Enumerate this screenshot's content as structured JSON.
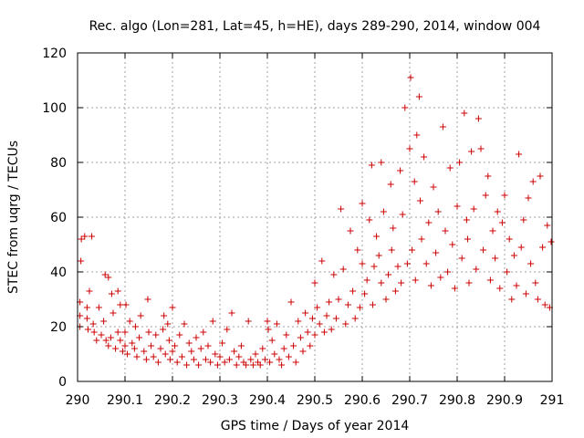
{
  "chart_data": {
    "type": "scatter",
    "title": "Rec. algo (Lon=281, Lat=45, h=HE), days 289-290, 2014, window 004",
    "xlabel": "GPS time / Days of year 2014",
    "ylabel": "STEC from uqrg / TECUs",
    "xlim": [
      290,
      291
    ],
    "ylim": [
      0,
      120
    ],
    "x_ticks": [
      290,
      290.1,
      290.2,
      290.3,
      290.4,
      290.5,
      290.6,
      290.7,
      290.8,
      290.9,
      291
    ],
    "x_tick_labels": [
      "290",
      "290.1",
      "290.2",
      "290.3",
      "290.4",
      "290.5",
      "290.6",
      "290.7",
      "290.8",
      "290.9",
      "291"
    ],
    "y_ticks": [
      0,
      20,
      40,
      60,
      80,
      100,
      120
    ],
    "y_tick_labels": [
      "0",
      "20",
      "40",
      "60",
      "80",
      "100",
      "120"
    ],
    "grid": true,
    "marker": "plus",
    "color": "#cc0000",
    "series": [
      {
        "points": [
          [
            290.005,
            20
          ],
          [
            290.005,
            24
          ],
          [
            290.005,
            29
          ],
          [
            290.007,
            44
          ],
          [
            290.008,
            52
          ],
          [
            290.015,
            53
          ],
          [
            290.02,
            27
          ],
          [
            290.02,
            23
          ],
          [
            290.022,
            19
          ],
          [
            290.025,
            33
          ],
          [
            290.03,
            53
          ],
          [
            290.033,
            21
          ],
          [
            290.035,
            18
          ],
          [
            290.04,
            15
          ],
          [
            290.045,
            27
          ],
          [
            290.05,
            17
          ],
          [
            290.055,
            22
          ],
          [
            290.058,
            39
          ],
          [
            290.06,
            15
          ],
          [
            290.065,
            38
          ],
          [
            290.065,
            13
          ],
          [
            290.07,
            16
          ],
          [
            290.072,
            32
          ],
          [
            290.075,
            25
          ],
          [
            290.08,
            12
          ],
          [
            290.085,
            18
          ],
          [
            290.085,
            33
          ],
          [
            290.09,
            15
          ],
          [
            290.09,
            28
          ],
          [
            290.095,
            11
          ],
          [
            290.1,
            13
          ],
          [
            290.1,
            18
          ],
          [
            290.102,
            28
          ],
          [
            290.105,
            10
          ],
          [
            290.11,
            22
          ],
          [
            290.115,
            14
          ],
          [
            290.12,
            12
          ],
          [
            290.122,
            20
          ],
          [
            290.125,
            9
          ],
          [
            290.13,
            16
          ],
          [
            290.133,
            24
          ],
          [
            290.14,
            11
          ],
          [
            290.145,
            8
          ],
          [
            290.148,
            30
          ],
          [
            290.15,
            18
          ],
          [
            290.155,
            13
          ],
          [
            290.16,
            9
          ],
          [
            290.165,
            17
          ],
          [
            290.17,
            7
          ],
          [
            290.175,
            12
          ],
          [
            290.18,
            19
          ],
          [
            290.182,
            24
          ],
          [
            290.185,
            10
          ],
          [
            290.19,
            21
          ],
          [
            290.193,
            15
          ],
          [
            290.195,
            8
          ],
          [
            290.2,
            27
          ],
          [
            290.2,
            11
          ],
          [
            290.205,
            13
          ],
          [
            290.21,
            7
          ],
          [
            290.215,
            17
          ],
          [
            290.22,
            9
          ],
          [
            290.225,
            21
          ],
          [
            290.23,
            6
          ],
          [
            290.235,
            14
          ],
          [
            290.24,
            11
          ],
          [
            290.245,
            8
          ],
          [
            290.25,
            16
          ],
          [
            290.255,
            6
          ],
          [
            290.26,
            12
          ],
          [
            290.265,
            18
          ],
          [
            290.27,
            8
          ],
          [
            290.275,
            13
          ],
          [
            290.28,
            7
          ],
          [
            290.285,
            22
          ],
          [
            290.29,
            10
          ],
          [
            290.295,
            6
          ],
          [
            290.3,
            9
          ],
          [
            290.305,
            14
          ],
          [
            290.31,
            7
          ],
          [
            290.315,
            19
          ],
          [
            290.32,
            8
          ],
          [
            290.325,
            25
          ],
          [
            290.33,
            11
          ],
          [
            290.335,
            6
          ],
          [
            290.34,
            9
          ],
          [
            290.345,
            13
          ],
          [
            290.35,
            7
          ],
          [
            290.355,
            6
          ],
          [
            290.36,
            22
          ],
          [
            290.365,
            8
          ],
          [
            290.37,
            6
          ],
          [
            290.375,
            10
          ],
          [
            290.38,
            7
          ],
          [
            290.385,
            6
          ],
          [
            290.39,
            12
          ],
          [
            290.395,
            8
          ],
          [
            290.4,
            22
          ],
          [
            290.402,
            19
          ],
          [
            290.405,
            7
          ],
          [
            290.41,
            15
          ],
          [
            290.415,
            10
          ],
          [
            290.42,
            21
          ],
          [
            290.425,
            8
          ],
          [
            290.43,
            6
          ],
          [
            290.435,
            12
          ],
          [
            290.44,
            17
          ],
          [
            290.445,
            9
          ],
          [
            290.45,
            29
          ],
          [
            290.455,
            13
          ],
          [
            290.46,
            7
          ],
          [
            290.465,
            22
          ],
          [
            290.47,
            16
          ],
          [
            290.475,
            11
          ],
          [
            290.48,
            25
          ],
          [
            290.485,
            18
          ],
          [
            290.49,
            13
          ],
          [
            290.495,
            23
          ],
          [
            290.5,
            36
          ],
          [
            290.5,
            17
          ],
          [
            290.505,
            27
          ],
          [
            290.51,
            21
          ],
          [
            290.515,
            44
          ],
          [
            290.52,
            18
          ],
          [
            290.525,
            24
          ],
          [
            290.53,
            29
          ],
          [
            290.535,
            19
          ],
          [
            290.54,
            39
          ],
          [
            290.545,
            23
          ],
          [
            290.55,
            30
          ],
          [
            290.555,
            63
          ],
          [
            290.56,
            41
          ],
          [
            290.565,
            21
          ],
          [
            290.57,
            28
          ],
          [
            290.575,
            55
          ],
          [
            290.58,
            33
          ],
          [
            290.585,
            23
          ],
          [
            290.59,
            48
          ],
          [
            290.595,
            27
          ],
          [
            290.6,
            65
          ],
          [
            290.6,
            43
          ],
          [
            290.605,
            32
          ],
          [
            290.61,
            37
          ],
          [
            290.615,
            59
          ],
          [
            290.62,
            79
          ],
          [
            290.622,
            28
          ],
          [
            290.625,
            42
          ],
          [
            290.63,
            53
          ],
          [
            290.635,
            46
          ],
          [
            290.64,
            36
          ],
          [
            290.64,
            80
          ],
          [
            290.645,
            62
          ],
          [
            290.65,
            30
          ],
          [
            290.655,
            39
          ],
          [
            290.66,
            72
          ],
          [
            290.662,
            48
          ],
          [
            290.665,
            56
          ],
          [
            290.67,
            33
          ],
          [
            290.675,
            42
          ],
          [
            290.68,
            77
          ],
          [
            290.682,
            36
          ],
          [
            290.685,
            61
          ],
          [
            290.69,
            100
          ],
          [
            290.695,
            43
          ],
          [
            290.7,
            85
          ],
          [
            290.702,
            111
          ],
          [
            290.705,
            48
          ],
          [
            290.71,
            73
          ],
          [
            290.712,
            37
          ],
          [
            290.715,
            90
          ],
          [
            290.72,
            104
          ],
          [
            290.722,
            66
          ],
          [
            290.725,
            52
          ],
          [
            290.73,
            82
          ],
          [
            290.735,
            43
          ],
          [
            290.74,
            58
          ],
          [
            290.745,
            35
          ],
          [
            290.75,
            71
          ],
          [
            290.755,
            47
          ],
          [
            290.76,
            62
          ],
          [
            290.765,
            38
          ],
          [
            290.77,
            93
          ],
          [
            290.775,
            55
          ],
          [
            290.78,
            40
          ],
          [
            290.785,
            78
          ],
          [
            290.79,
            50
          ],
          [
            290.795,
            34
          ],
          [
            290.8,
            64
          ],
          [
            290.805,
            80
          ],
          [
            290.81,
            45
          ],
          [
            290.815,
            98
          ],
          [
            290.82,
            59
          ],
          [
            290.822,
            52
          ],
          [
            290.825,
            36
          ],
          [
            290.83,
            84
          ],
          [
            290.835,
            63
          ],
          [
            290.84,
            41
          ],
          [
            290.845,
            96
          ],
          [
            290.85,
            85
          ],
          [
            290.855,
            48
          ],
          [
            290.86,
            68
          ],
          [
            290.865,
            75
          ],
          [
            290.87,
            37
          ],
          [
            290.875,
            55
          ],
          [
            290.88,
            45
          ],
          [
            290.885,
            62
          ],
          [
            290.89,
            34
          ],
          [
            290.895,
            58
          ],
          [
            290.9,
            68
          ],
          [
            290.905,
            40
          ],
          [
            290.91,
            52
          ],
          [
            290.915,
            30
          ],
          [
            290.92,
            46
          ],
          [
            290.925,
            35
          ],
          [
            290.93,
            83
          ],
          [
            290.935,
            49
          ],
          [
            290.94,
            59
          ],
          [
            290.945,
            32
          ],
          [
            290.95,
            67
          ],
          [
            290.955,
            43
          ],
          [
            290.96,
            73
          ],
          [
            290.965,
            36
          ],
          [
            290.97,
            30
          ],
          [
            290.975,
            75
          ],
          [
            290.98,
            49
          ],
          [
            290.985,
            28
          ],
          [
            290.99,
            57
          ],
          [
            290.995,
            27
          ],
          [
            290.998,
            51
          ]
        ]
      }
    ]
  }
}
